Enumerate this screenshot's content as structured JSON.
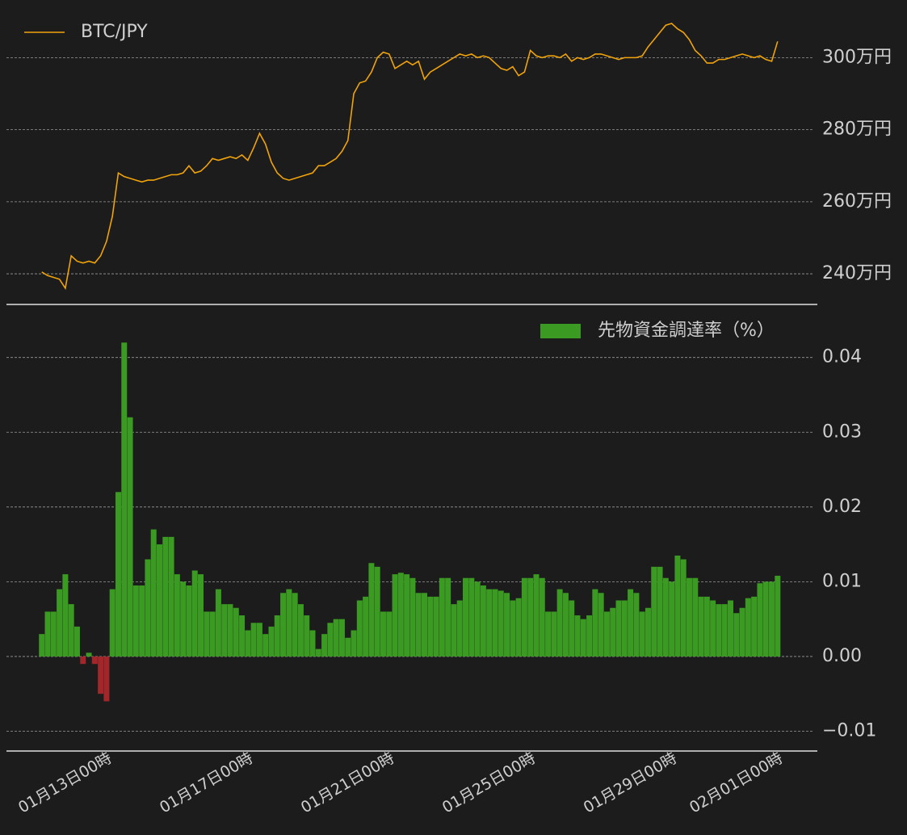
{
  "chart_data": [
    {
      "type": "line",
      "x": [
        "01月12日08時",
        "01月12日12時",
        "01月12日16時",
        "01月12日20時",
        "01月13日00時",
        "01月13日04時",
        "01月13日08時",
        "01月13日12時",
        "01月13日16時",
        "01月13日20時",
        "01月14日00時",
        "01月14日04時",
        "01月14日08時",
        "01月14日12時",
        "01月14日16時",
        "01月14日20時",
        "01月15日00時",
        "01月15日04時",
        "01月15日08時",
        "01月15日12時",
        "01月15日16時",
        "01月15日20時",
        "01月16日00時",
        "01月16日04時",
        "01月16日08時",
        "01月16日12時",
        "01月16日16時",
        "01月16日20時",
        "01月17日00時",
        "01月17日04時",
        "01月17日08時",
        "01月17日12時",
        "01月17日16時",
        "01月17日20時",
        "01月18日00時",
        "01月18日04時",
        "01月18日08時",
        "01月18日12時",
        "01月18日16時",
        "01月18日20時",
        "01月19日00時",
        "01月19日04時",
        "01月19日08時",
        "01月19日12時",
        "01月19日16時",
        "01月19日20時",
        "01月20日00時",
        "01月20日04時",
        "01月20日08時",
        "01月20日12時",
        "01月20日16時",
        "01月20日20時",
        "01月21日00時",
        "01月21日04時",
        "01月21日08時",
        "01月21日12時",
        "01月21日16時",
        "01月21日20時",
        "01月22日00時",
        "01月22日04時",
        "01月22日08時",
        "01月22日12時",
        "01月22日16時",
        "01月22日20時",
        "01月23日00時",
        "01月23日04時",
        "01月23日08時",
        "01月23日12時",
        "01月23日16時",
        "01月23日20時",
        "01月24日00時",
        "01月24日04時",
        "01月24日08時",
        "01月24日12時",
        "01月24日16時",
        "01月24日20時",
        "01月25日00時",
        "01月25日04時",
        "01月25日08時",
        "01月25日12時",
        "01月25日16時",
        "01月25日20時",
        "01月26日00時",
        "01月26日04時",
        "01月26日08時",
        "01月26日12時",
        "01月26日16時",
        "01月26日20時",
        "01月27日00時",
        "01月27日04時",
        "01月27日08時",
        "01月27日12時",
        "01月27日16時",
        "01月27日20時",
        "01月28日00時",
        "01月28日04時",
        "01月28日08時",
        "01月28日12時",
        "01月28日16時",
        "01月28日20時",
        "01月29日00時",
        "01月29日04時",
        "01月29日08時",
        "01月29日12時",
        "01月29日16時",
        "01月29日20時",
        "01月30日00時",
        "01月30日04時",
        "01月30日08時",
        "01月30日12時",
        "01月30日16時",
        "01月30日20時",
        "01月31日00時",
        "01月31日04時",
        "01月31日08時",
        "01月31日12時",
        "01月31日16時",
        "01月31日20時",
        "02月01日00時",
        "02月01日04時",
        "02月01日08時",
        "02月01日12時",
        "02月01日16時",
        "02月01日20時",
        "02月02日00時",
        "02月02日04時"
      ],
      "series": [
        {
          "name": "BTC/JPY",
          "color": "#f0a30a",
          "values": [
            240.5,
            239.5,
            239,
            238.5,
            236,
            245,
            243.5,
            243,
            243.5,
            243,
            245,
            249,
            256,
            268,
            267,
            266.5,
            266,
            265.5,
            266,
            266,
            266.5,
            267,
            267.5,
            267.5,
            268,
            270,
            268,
            268.5,
            270,
            272,
            271.5,
            272,
            272.5,
            272,
            273,
            271.5,
            275,
            279,
            276,
            271,
            268,
            266.5,
            266,
            266.5,
            267,
            267.5,
            268,
            270,
            270,
            271,
            272,
            274,
            277,
            290,
            293,
            293.5,
            296,
            300,
            301.5,
            301,
            297,
            298,
            299,
            298,
            299,
            294,
            296,
            297,
            298,
            299,
            300,
            301,
            300.5,
            301,
            300,
            300.5,
            300,
            298.5,
            297,
            296.5,
            297.5,
            295,
            296,
            302,
            300.5,
            300,
            300.5,
            300.5,
            300,
            301,
            299,
            300,
            299.5,
            300,
            301,
            301,
            300.5,
            300,
            299.5,
            300,
            300,
            300,
            300.5,
            303,
            305,
            307,
            309,
            309.5,
            308,
            307,
            305,
            302,
            300.5,
            298.5,
            298.5,
            299.5,
            299.5,
            300,
            300.5,
            301,
            300.5,
            300,
            300.5,
            299.5,
            299,
            304.5
          ]
        }
      ],
      "xlim": [
        "01月11日08時",
        "02月03日07時"
      ],
      "ylim": [
        231.5,
        316
      ],
      "yticks": [
        {
          "value": 240,
          "label": "240万円"
        },
        {
          "value": 260,
          "label": "260万円"
        },
        {
          "value": 280,
          "label": "280万円"
        },
        {
          "value": 300,
          "label": "300万円"
        }
      ],
      "grid": true,
      "legend": "upper left"
    },
    {
      "type": "bar",
      "x": [
        "01月12日08時",
        "01月12日12時",
        "01月12日16時",
        "01月12日20時",
        "01月13日00時",
        "01月13日04時",
        "01月13日08時",
        "01月13日12時",
        "01月13日16時",
        "01月13日20時",
        "01月14日00時",
        "01月14日04時",
        "01月14日08時",
        "01月14日12時",
        "01月14日16時",
        "01月14日20時",
        "01月15日00時",
        "01月15日04時",
        "01月15日08時",
        "01月15日12時",
        "01月15日16時",
        "01月15日20時",
        "01月16日00時",
        "01月16日04時",
        "01月16日08時",
        "01月16日12時",
        "01月16日16時",
        "01月16日20時",
        "01月17日00時",
        "01月17日04時",
        "01月17日08時",
        "01月17日12時",
        "01月17日16時",
        "01月17日20時",
        "01月18日00時",
        "01月18日04時",
        "01月18日08時",
        "01月18日12時",
        "01月18日16時",
        "01月18日20時",
        "01月19日00時",
        "01月19日04時",
        "01月19日08時",
        "01月19日12時",
        "01月19日16時",
        "01月19日20時",
        "01月20日00時",
        "01月20日04時",
        "01月20日08時",
        "01月20日12時",
        "01月20日16時",
        "01月20日20時",
        "01月21日00時",
        "01月21日04時",
        "01月21日08時",
        "01月21日12時",
        "01月21日16時",
        "01月21日20時",
        "01月22日00時",
        "01月22日04時",
        "01月22日08時",
        "01月22日12時",
        "01月22日16時",
        "01月22日20時",
        "01月23日00時",
        "01月23日04時",
        "01月23日08時",
        "01月23日12時",
        "01月23日16時",
        "01月23日20時",
        "01月24日00時",
        "01月24日04時",
        "01月24日08時",
        "01月24日12時",
        "01月24日16時",
        "01月24日20時",
        "01月25日00時",
        "01月25日04時",
        "01月25日08時",
        "01月25日12時",
        "01月25日16時",
        "01月25日20時",
        "01月26日00時",
        "01月26日04時",
        "01月26日08時",
        "01月26日12時",
        "01月26日16時",
        "01月26日20時",
        "01月27日00時",
        "01月27日04時",
        "01月27日08時",
        "01月27日12時",
        "01月27日16時",
        "01月27日20時",
        "01月28日00時",
        "01月28日04時",
        "01月28日08時",
        "01月28日12時",
        "01月28日16時",
        "01月28日20時",
        "01月29日00時",
        "01月29日04時",
        "01月29日08時",
        "01月29日12時",
        "01月29日16時",
        "01月29日20時",
        "01月30日00時",
        "01月30日04時",
        "01月30日08時",
        "01月30日12時",
        "01月30日16時",
        "01月30日20時",
        "01月31日00時",
        "01月31日04時",
        "01月31日08時",
        "01月31日12時",
        "01月31日16時",
        "01月31日20時",
        "02月01日00時",
        "02月01日04時",
        "02月01日08時",
        "02月01日12時",
        "02月01日16時",
        "02月01日20時",
        "02月02日00時",
        "02月02日04時"
      ],
      "series": [
        {
          "name": "先物資金調達率（%）",
          "color": "#3a9a22",
          "negative_color": "#a3262a",
          "values": [
            0.003,
            0.006,
            0.006,
            0.009,
            0.011,
            0.007,
            0.004,
            -0.001,
            0.0005,
            -0.001,
            -0.005,
            -0.006,
            0.009,
            0.022,
            0.042,
            0.032,
            0.0095,
            0.0095,
            0.013,
            0.017,
            0.015,
            0.016,
            0.016,
            0.011,
            0.01,
            0.0095,
            0.0115,
            0.011,
            0.006,
            0.006,
            0.009,
            0.007,
            0.007,
            0.0065,
            0.0055,
            0.0035,
            0.0045,
            0.0045,
            0.003,
            0.004,
            0.0055,
            0.0085,
            0.009,
            0.0085,
            0.007,
            0.0055,
            0.0035,
            0.001,
            0.003,
            0.0045,
            0.005,
            0.005,
            0.0025,
            0.0035,
            0.0075,
            0.008,
            0.0125,
            0.012,
            0.006,
            0.006,
            0.011,
            0.0112,
            0.011,
            0.0105,
            0.0085,
            0.0085,
            0.008,
            0.008,
            0.0105,
            0.0105,
            0.007,
            0.0075,
            0.0105,
            0.0105,
            0.01,
            0.0095,
            0.009,
            0.009,
            0.0088,
            0.0085,
            0.0075,
            0.0078,
            0.0105,
            0.0105,
            0.011,
            0.0105,
            0.006,
            0.006,
            0.009,
            0.0085,
            0.0075,
            0.0055,
            0.005,
            0.0055,
            0.009,
            0.0085,
            0.006,
            0.0065,
            0.0075,
            0.0075,
            0.009,
            0.0085,
            0.006,
            0.0065,
            0.012,
            0.012,
            0.0105,
            0.01,
            0.0135,
            0.013,
            0.0105,
            0.0105,
            0.008,
            0.008,
            0.0075,
            0.007,
            0.007,
            0.0075,
            0.0058,
            0.0065,
            0.0078,
            0.008,
            0.0098,
            0.01,
            0.01,
            0.0108
          ]
        }
      ],
      "xlim": [
        "01月11日08時",
        "02月03日07時"
      ],
      "xticks": [
        "01月13日00時",
        "01月17日00時",
        "01月21日00時",
        "01月25日00時",
        "01月29日00時",
        "02月01日00時"
      ],
      "ylim": [
        -0.01265,
        0.0471
      ],
      "yticks": [
        {
          "value": -0.01,
          "label": "−0.01"
        },
        {
          "value": 0,
          "label": "0.00"
        },
        0.01,
        0.02,
        0.03,
        0.04
      ],
      "grid": true,
      "legend": "upper right"
    }
  ]
}
